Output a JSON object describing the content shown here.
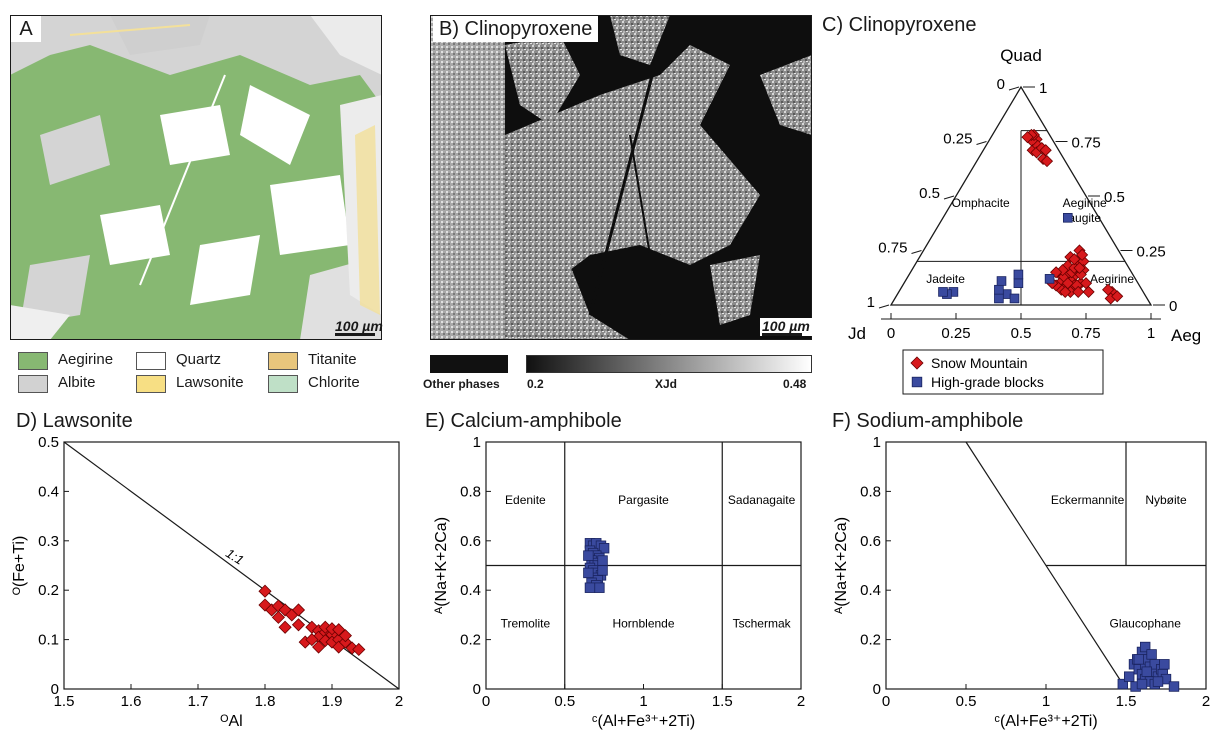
{
  "panel_a": {
    "label": "A",
    "scale_bar": "100 µm",
    "legend": [
      {
        "name": "Aegirine",
        "color": "#87b872"
      },
      {
        "name": "Albite",
        "color": "#d2d2d2"
      },
      {
        "name": "Quartz",
        "color": "#ffffff"
      },
      {
        "name": "Lawsonite",
        "color": "#f7df84"
      },
      {
        "name": "Titanite",
        "color": "#e8c67c"
      },
      {
        "name": "Chlorite",
        "color": "#bfe0c7"
      }
    ]
  },
  "panel_b": {
    "label": "B) Clinopyroxene",
    "scale_bar": "100 µm",
    "other_phases_label": "Other phases",
    "colorbar_min": "0.2",
    "colorbar_label": "XJd",
    "colorbar_max": "0.48"
  },
  "chart_data": [
    {
      "panel": "C",
      "type": "scatter",
      "subtype": "ternary",
      "title": "C) Clinopyroxene",
      "apices": {
        "top": "Quad",
        "left": "Jd",
        "right": "Aeg"
      },
      "ticks": {
        "bottom": [
          "0",
          "0.25",
          "0.5",
          "0.75",
          "1"
        ],
        "left": [
          "1",
          "0.75",
          "0.5",
          "0.25",
          "0"
        ],
        "right": [
          "0",
          "0.25",
          "0.5",
          "0.75",
          "1"
        ]
      },
      "fields": [
        "Omphacite",
        "Aegirine augite",
        "Jadeite",
        "Aegirine"
      ],
      "series": [
        {
          "name": "Snow Mountain",
          "color": "#d7191c",
          "marker": "diamond",
          "points": [
            [
              0.06,
              0.18
            ],
            [
              0.08,
              0.17
            ],
            [
              0.1,
              0.19
            ],
            [
              0.07,
              0.2
            ],
            [
              0.09,
              0.21
            ],
            [
              0.06,
              0.22
            ],
            [
              0.05,
              0.24
            ],
            [
              0.08,
              0.25
            ],
            [
              0.07,
              0.27
            ],
            [
              0.06,
              0.16
            ],
            [
              0.07,
              0.15
            ],
            [
              0.09,
              0.14
            ],
            [
              0.15,
              0.6
            ],
            [
              0.18,
              0.62
            ],
            [
              0.16,
              0.64
            ],
            [
              0.2,
              0.58
            ],
            [
              0.18,
              0.66
            ],
            [
              0.15,
              0.62
            ],
            [
              0.28,
              0.58
            ],
            [
              0.26,
              0.62
            ],
            [
              0.3,
              0.6
            ],
            [
              0.25,
              0.64
            ],
            [
              0.29,
              0.63
            ],
            [
              0.27,
              0.6
            ],
            [
              0.31,
              0.62
            ],
            [
              0.24,
              0.61
            ],
            [
              0.25,
              0.66
            ],
            [
              0.28,
              0.66
            ],
            [
              0.22,
              0.64
            ],
            [
              0.22,
              0.68
            ],
            [
              0.2,
              0.66
            ],
            [
              0.23,
              0.62
            ],
            [
              0.32,
              0.59
            ],
            [
              0.3,
              0.64
            ],
            [
              0.27,
              0.63
            ],
            [
              0.23,
              0.59
            ],
            [
              0.26,
              0.58
            ],
            [
              0.21,
              0.62
            ],
            [
              0.19,
              0.6
            ],
            [
              0.24,
              0.67
            ],
            [
              0.2,
              0.7
            ],
            [
              0.21,
              0.73
            ],
            [
              0.29,
              0.56
            ],
            [
              0.33,
              0.57
            ],
            [
              0.25,
              0.69
            ],
            [
              0.19,
              0.64
            ],
            [
              0.12,
              0.82
            ],
            [
              0.14,
              0.83
            ],
            [
              0.11,
              0.85
            ],
            [
              0.13,
              0.8
            ]
          ]
        },
        {
          "name": "High-grade blocks",
          "color": "#3a4a9f",
          "marker": "square",
          "points": [
            [
              0.53,
              0.42
            ],
            [
              0.51,
              0.46
            ],
            [
              0.57,
              0.4
            ],
            [
              0.52,
              0.37
            ],
            [
              0.55,
              0.38
            ],
            [
              0.46,
              0.44
            ],
            [
              0.44,
              0.42
            ],
            [
              0.33,
              0.55
            ],
            [
              0.12,
              0.48
            ],
            [
              0.73,
              0.21
            ],
            [
              0.76,
              0.19
            ],
            [
              0.77,
              0.17
            ]
          ]
        }
      ]
    },
    {
      "panel": "D",
      "type": "scatter",
      "title": "D) Lawsonite",
      "xlabel": "ᴼAl",
      "ylabel": "ᴼ(Fe+Ti)",
      "xlim": [
        1.5,
        2
      ],
      "ylim": [
        0,
        0.5
      ],
      "xticks": [
        "1.5",
        "1.6",
        "1.7",
        "1.8",
        "1.9",
        "2"
      ],
      "yticks": [
        "0",
        "0.1",
        "0.2",
        "0.3",
        "0.4",
        "0.5"
      ],
      "annotation": "1:1",
      "line": {
        "x": [
          1.5,
          2
        ],
        "y": [
          0.5,
          0
        ]
      },
      "series": [
        {
          "name": "Snow Mountain",
          "color": "#d7191c",
          "marker": "diamond",
          "points": [
            [
              1.8,
              0.198
            ],
            [
              1.8,
              0.17
            ],
            [
              1.81,
              0.16
            ],
            [
              1.82,
              0.168
            ],
            [
              1.82,
              0.145
            ],
            [
              1.83,
              0.16
            ],
            [
              1.84,
              0.15
            ],
            [
              1.85,
              0.16
            ],
            [
              1.85,
              0.13
            ],
            [
              1.83,
              0.125
            ],
            [
              1.87,
              0.125
            ],
            [
              1.88,
              0.118
            ],
            [
              1.88,
              0.105
            ],
            [
              1.89,
              0.115
            ],
            [
              1.89,
              0.098
            ],
            [
              1.9,
              0.11
            ],
            [
              1.9,
              0.095
            ],
            [
              1.91,
              0.1
            ],
            [
              1.91,
              0.085
            ],
            [
              1.92,
              0.095
            ],
            [
              1.92,
              0.108
            ],
            [
              1.93,
              0.083
            ],
            [
              1.94,
              0.08
            ],
            [
              1.86,
              0.095
            ],
            [
              1.87,
              0.1
            ],
            [
              1.88,
              0.085
            ],
            [
              1.89,
              0.125
            ],
            [
              1.9,
              0.122
            ],
            [
              1.91,
              0.12
            ]
          ]
        }
      ]
    },
    {
      "panel": "E",
      "type": "scatter",
      "title": "E) Calcium-amphibole",
      "xlabel": "ᶜ(Al+Fe³⁺+2Ti)",
      "ylabel": "ᴬ(Na+K+2Ca)",
      "xlim": [
        0,
        2
      ],
      "ylim": [
        0,
        1
      ],
      "xticks": [
        "0",
        "0.5",
        "1",
        "1.5",
        "2"
      ],
      "yticks": [
        "0",
        "0.2",
        "0.4",
        "0.6",
        "0.8",
        "1"
      ],
      "fields": [
        "Edenite",
        "Pargasite",
        "Sadanagaite",
        "Tremolite",
        "Hornblende",
        "Tschermak"
      ],
      "series": [
        {
          "name": "High-grade blocks",
          "color": "#3a4a9f",
          "marker": "square",
          "points": [
            [
              0.66,
              0.59
            ],
            [
              0.68,
              0.58
            ],
            [
              0.7,
              0.59
            ],
            [
              0.73,
              0.58
            ],
            [
              0.75,
              0.57
            ],
            [
              0.66,
              0.56
            ],
            [
              0.68,
              0.55
            ],
            [
              0.7,
              0.54
            ],
            [
              0.72,
              0.53
            ],
            [
              0.67,
              0.52
            ],
            [
              0.69,
              0.51
            ],
            [
              0.71,
              0.5
            ],
            [
              0.66,
              0.49
            ],
            [
              0.68,
              0.48
            ],
            [
              0.7,
              0.47
            ],
            [
              0.73,
              0.46
            ],
            [
              0.69,
              0.45
            ],
            [
              0.71,
              0.44
            ],
            [
              0.67,
              0.43
            ],
            [
              0.7,
              0.42
            ],
            [
              0.72,
              0.41
            ],
            [
              0.66,
              0.41
            ],
            [
              0.74,
              0.48
            ],
            [
              0.74,
              0.52
            ],
            [
              0.65,
              0.54
            ],
            [
              0.65,
              0.47
            ]
          ]
        }
      ]
    },
    {
      "panel": "F",
      "type": "scatter",
      "title": "F) Sodium-amphibole",
      "xlabel": "ᶜ(Al+Fe³⁺+2Ti)",
      "ylabel": "ᴬ(Na+K+2Ca)",
      "xlim": [
        0,
        2
      ],
      "ylim": [
        0,
        1
      ],
      "xticks": [
        "0",
        "0.5",
        "1",
        "1.5",
        "2"
      ],
      "yticks": [
        "0",
        "0.2",
        "0.4",
        "0.6",
        "0.8",
        "1"
      ],
      "fields": [
        "Eckermannite",
        "Nybøite",
        "Glaucophane"
      ],
      "series": [
        {
          "name": "High-grade blocks",
          "color": "#3a4a9f",
          "marker": "square",
          "points": [
            [
              1.48,
              0.02
            ],
            [
              1.52,
              0.05
            ],
            [
              1.55,
              0.1
            ],
            [
              1.57,
              0.12
            ],
            [
              1.6,
              0.15
            ],
            [
              1.62,
              0.17
            ],
            [
              1.58,
              0.08
            ],
            [
              1.6,
              0.06
            ],
            [
              1.62,
              0.1
            ],
            [
              1.64,
              0.12
            ],
            [
              1.65,
              0.09
            ],
            [
              1.67,
              0.07
            ],
            [
              1.68,
              0.1
            ],
            [
              1.7,
              0.05
            ],
            [
              1.72,
              0.08
            ],
            [
              1.73,
              0.06
            ],
            [
              1.75,
              0.04
            ],
            [
              1.62,
              0.04
            ],
            [
              1.65,
              0.03
            ],
            [
              1.68,
              0.02
            ],
            [
              1.7,
              0.03
            ],
            [
              1.56,
              0.01
            ],
            [
              1.6,
              0.02
            ],
            [
              1.74,
              0.1
            ],
            [
              1.66,
              0.14
            ],
            [
              1.8,
              0.01
            ],
            [
              1.63,
              0.07
            ],
            [
              1.58,
              0.12
            ]
          ]
        }
      ]
    }
  ]
}
